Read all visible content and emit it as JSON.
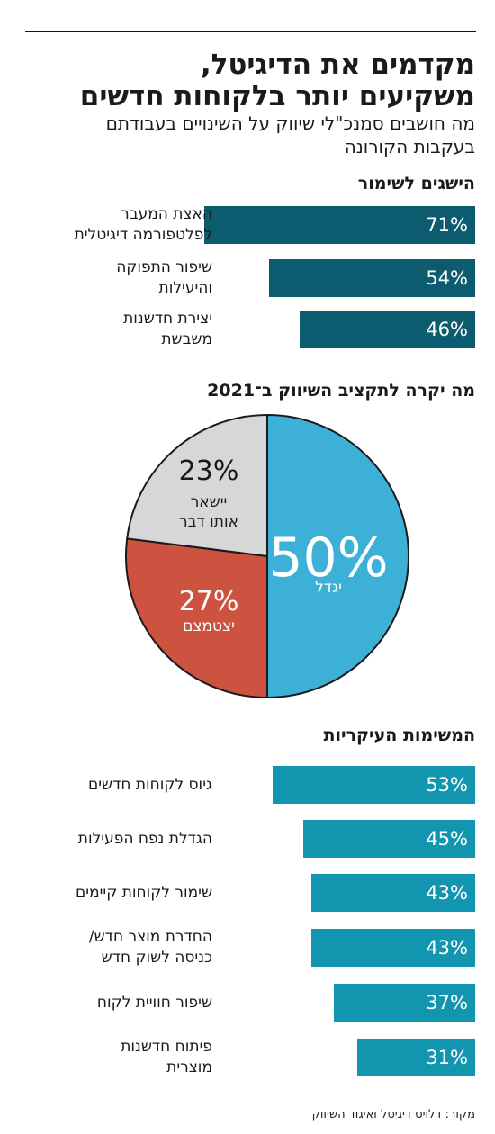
{
  "header": {
    "title_line1": "מקדמים את הדיגיטל,",
    "title_line2": "משקיעים יותר בלקוחות חדשים",
    "subtitle_line1": "מה חושבים סמנכ\"לי שיווק על השינויים בעבודתם",
    "subtitle_line2": "בעקבות הקורונה"
  },
  "colors": {
    "dark_teal": "#0c5b6e",
    "teal": "#1295ae",
    "blue": "#3db0d8",
    "red": "#cd5340",
    "gray": "#d7d7d7"
  },
  "chart_data": [
    {
      "type": "bar",
      "title": "הישגים לשימור",
      "categories": [
        [
          "האצת המעבר",
          "לפלטפורמה דיגיטלית"
        ],
        [
          "שיפור התפוקה",
          "והיעילות"
        ],
        [
          "יצירת חדשנות",
          "משבשת"
        ]
      ],
      "values": [
        71,
        54,
        46
      ],
      "value_labels": [
        "71%",
        "54%",
        "46%"
      ],
      "color": "#0c5b6e"
    },
    {
      "type": "pie",
      "title": "מה יקרה לתקציב השיווק ב־2021",
      "slices": [
        {
          "label": "יגדל",
          "value": 50,
          "value_label": "50%",
          "color": "#3db0d8"
        },
        {
          "label": "יצטמצם",
          "value": 27,
          "value_label": "27%",
          "color": "#cd5340"
        },
        {
          "label": [
            "יישאר",
            "אותו דבר"
          ],
          "value": 23,
          "value_label": "23%",
          "color": "#d7d7d7"
        }
      ]
    },
    {
      "type": "bar",
      "title": "המשימות העיקריות",
      "categories": [
        [
          "גיוס לקוחות חדשים"
        ],
        [
          "הגדלת נפח הפעילות"
        ],
        [
          "שימור לקוחות קיימים"
        ],
        [
          "החדרת מוצר חדש/",
          "כניסה לשוק חדש"
        ],
        [
          "שיפור חוויית לקוח"
        ],
        [
          "פיתוח חדשנות",
          "מוצרית"
        ]
      ],
      "values": [
        53,
        45,
        43,
        43,
        37,
        31
      ],
      "value_labels": [
        "53%",
        "45%",
        "43%",
        "43%",
        "37%",
        "31%"
      ],
      "color": "#1295ae"
    }
  ],
  "source": "מקור: דלויט דיגיטל ואיגוד השיווק"
}
